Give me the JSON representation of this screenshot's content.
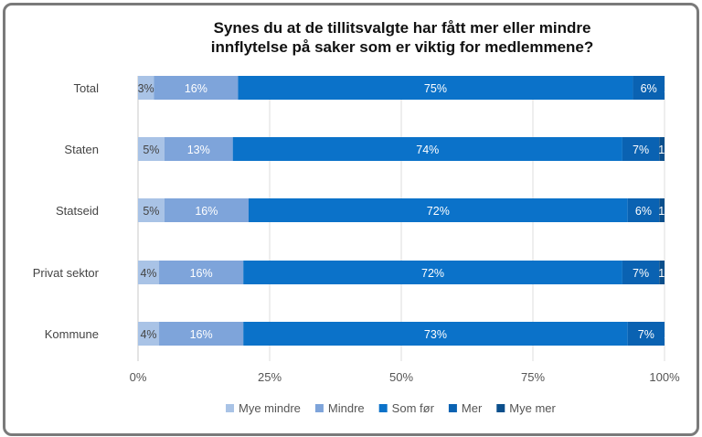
{
  "chart_data": {
    "type": "bar",
    "orientation": "horizontal",
    "stacked": "100%",
    "title": "Synes du at de tillitsvalgte har fått mer eller mindre innflytelse på saker som er viktig for medlemmene?",
    "title_lines": [
      "Synes du at de tillitsvalgte har fått mer eller mindre",
      "innflytelse på saker som er viktig for medlemmene?"
    ],
    "categories": [
      "Total",
      "Staten",
      "Statseid",
      "Privat sektor",
      "Kommune"
    ],
    "series": [
      {
        "name": "Mye mindre",
        "color": "#a9c3e6",
        "label_color": "#444444",
        "values": [
          3,
          5,
          5,
          4,
          4
        ]
      },
      {
        "name": "Mindre",
        "color": "#7ea4da",
        "label_color": "#ffffff",
        "values": [
          16,
          13,
          16,
          16,
          16
        ]
      },
      {
        "name": "Som før",
        "color": "#0b72c9",
        "label_color": "#ffffff",
        "values": [
          75,
          74,
          72,
          72,
          73
        ]
      },
      {
        "name": "Mer",
        "color": "#0a62b2",
        "label_color": "#ffffff",
        "values": [
          6,
          7,
          6,
          7,
          7
        ]
      },
      {
        "name": "Mye mer",
        "color": "#0b4f8c",
        "label_color": "#ffffff",
        "values": [
          1,
          1,
          1,
          1,
          1
        ]
      }
    ],
    "xlim": [
      0,
      100
    ],
    "xticks": [
      "0%",
      "25%",
      "50%",
      "75%",
      "100%"
    ],
    "grid": true,
    "legend": "bottom"
  }
}
